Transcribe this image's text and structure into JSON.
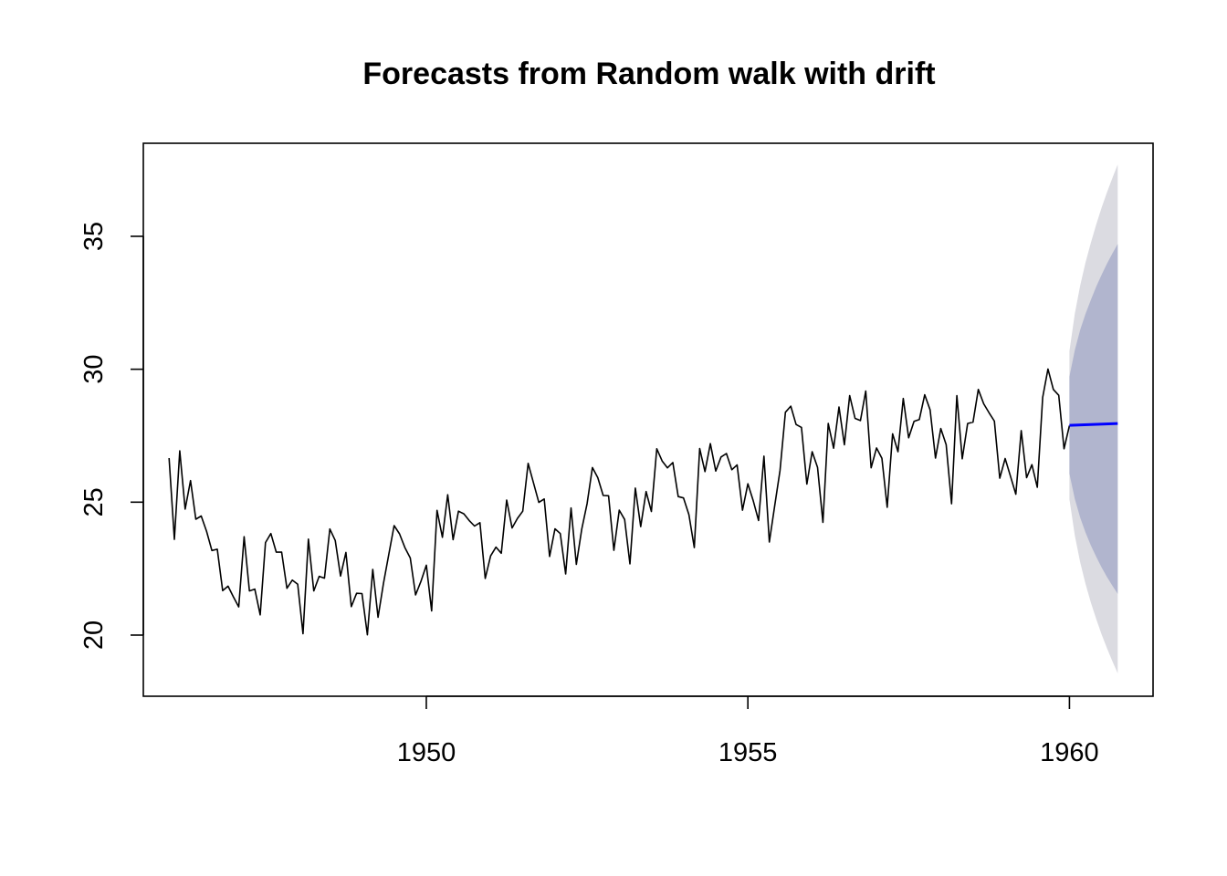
{
  "chart_data": {
    "type": "line",
    "title": "Forecasts from Random walk with drift",
    "xlabel": "",
    "ylabel": "",
    "xlim": [
      1945.6,
      1961.3
    ],
    "ylim": [
      17.7,
      38.5
    ],
    "x_ticks": [
      1950,
      1955,
      1960
    ],
    "x_tick_labels": [
      "1950",
      "1955",
      "1960"
    ],
    "y_ticks": [
      20,
      25,
      30,
      35
    ],
    "y_tick_labels": [
      "20",
      "25",
      "30",
      "35"
    ],
    "grid": false,
    "legend": "none",
    "series": [
      {
        "role": "history",
        "color": "#000000",
        "x_start": 1946.0,
        "step": 0.0833333,
        "values": [
          26.66,
          23.6,
          26.93,
          24.74,
          25.81,
          24.36,
          24.48,
          23.9,
          23.18,
          23.23,
          21.67,
          21.84,
          21.44,
          21.06,
          23.7,
          21.66,
          21.73,
          20.76,
          23.48,
          23.82,
          23.12,
          23.12,
          21.76,
          22.07,
          21.91,
          20.05,
          23.61,
          21.66,
          22.21,
          22.14,
          23.99,
          23.56,
          22.22,
          23.11,
          21.07,
          21.57,
          21.56,
          20.01,
          22.47,
          20.67,
          21.94,
          23.04,
          24.12,
          23.81,
          23.29,
          22.9,
          21.51,
          22.02,
          22.63,
          20.91,
          24.69,
          23.68,
          25.28,
          23.59,
          24.66,
          24.56,
          24.31,
          24.1,
          24.23,
          22.13,
          22.98,
          23.31,
          23.08,
          25.08,
          24.03,
          24.39,
          24.66,
          26.46,
          25.72,
          24.99,
          25.12,
          22.96,
          24.0,
          23.82,
          22.3,
          24.78,
          22.66,
          23.98,
          24.95,
          26.3,
          25.92,
          25.25,
          25.24,
          23.19,
          24.7,
          24.35,
          22.68,
          25.53,
          24.08,
          25.4,
          24.65,
          27.01,
          26.55,
          26.29,
          26.49,
          25.21,
          25.16,
          24.53,
          23.29,
          27.02,
          26.15,
          27.2,
          26.17,
          26.7,
          26.83,
          26.22,
          26.4,
          24.7,
          25.69,
          25.05,
          24.31,
          26.73,
          23.5,
          24.85,
          26.19,
          28.38,
          28.61,
          27.92,
          27.81,
          25.68,
          26.9,
          26.31,
          24.24,
          27.96,
          27.03,
          28.58,
          27.16,
          29.01,
          28.15,
          28.07,
          29.18,
          26.29,
          27.04,
          26.65,
          24.81,
          27.57,
          26.9,
          28.9,
          27.42,
          28.04,
          28.11,
          29.04,
          28.47,
          26.66,
          27.77,
          27.16,
          24.94,
          29.01,
          26.63,
          27.96,
          28.01,
          29.24,
          28.7,
          28.36,
          28.05,
          25.9,
          26.64,
          25.98,
          25.3,
          27.69,
          25.92,
          26.41,
          25.56,
          28.94,
          30.01,
          29.24,
          29.02,
          27.01,
          27.88
        ]
      },
      {
        "role": "forecast_mean",
        "color": "#0000ff",
        "x": [
          1960.0,
          1960.75
        ],
        "values": [
          27.89,
          27.96
        ]
      }
    ],
    "intervals": [
      {
        "level": 95,
        "color": "#dbdbe1",
        "x": [
          1960.0,
          1960.0833,
          1960.1667,
          1960.25,
          1960.3333,
          1960.4167,
          1960.5,
          1960.5833,
          1960.6667,
          1960.75
        ],
        "lower": [
          25.11,
          23.75,
          22.74,
          21.93,
          21.22,
          20.6,
          20.03,
          19.51,
          19.02,
          18.56
        ],
        "upper": [
          30.68,
          32.09,
          33.15,
          34.01,
          34.76,
          35.45,
          36.07,
          36.65,
          37.19,
          37.7
        ]
      },
      {
        "level": 80,
        "color": "#b1b5ce",
        "x": [
          1960.0,
          1960.0833,
          1960.1667,
          1960.25,
          1960.3333,
          1960.4167,
          1960.5,
          1960.5833,
          1960.6667,
          1960.75
        ],
        "lower": [
          26.07,
          25.12,
          24.42,
          23.86,
          23.37,
          22.94,
          22.55,
          22.19,
          21.86,
          21.55
        ],
        "upper": [
          29.72,
          30.72,
          31.48,
          32.08,
          32.61,
          33.11,
          33.55,
          33.97,
          34.35,
          34.71
        ]
      }
    ]
  }
}
